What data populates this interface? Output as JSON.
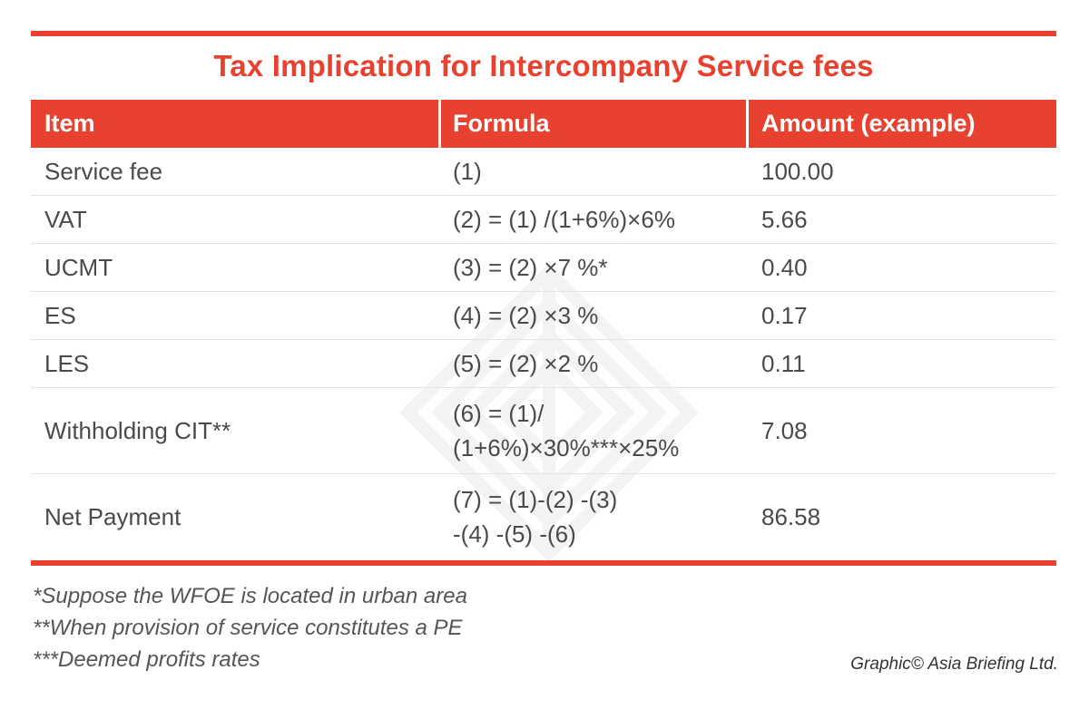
{
  "title": "Tax Implication for Intercompany Service fees",
  "colors": {
    "accent": "#e8412f",
    "text": "#4a4a4a",
    "row_separator": "#e3e3e3"
  },
  "table": {
    "headers": [
      "Item",
      "Formula",
      "Amount (example)"
    ],
    "rows": [
      {
        "item": "Service fee",
        "formula_lines": [
          "(1)"
        ],
        "amount": "100.00"
      },
      {
        "item": "VAT",
        "formula_lines": [
          "(2) = (1) /(1+6%)×6%"
        ],
        "amount": "5.66"
      },
      {
        "item": "UCMT",
        "formula_lines": [
          "(3) = (2) ×7 %*"
        ],
        "amount": "0.40"
      },
      {
        "item": "ES",
        "formula_lines": [
          "(4) = (2) ×3 %"
        ],
        "amount": "0.17"
      },
      {
        "item": "LES",
        "formula_lines": [
          "(5) = (2) ×2 %"
        ],
        "amount": "0.11"
      },
      {
        "item": "Withholding CIT**",
        "formula_lines": [
          "(6) = (1)/",
          "(1+6%)×30%***×25%"
        ],
        "amount": "7.08"
      },
      {
        "item": "Net Payment",
        "formula_lines": [
          "(7) = (1)-(2) -(3)",
          "-(4) -(5) -(6)"
        ],
        "amount": "86.58"
      }
    ]
  },
  "footnotes": [
    "*Suppose the WFOE is located in urban area",
    "**When provision of service constitutes a PE",
    "***Deemed profits rates"
  ],
  "credit": "Graphic© Asia Briefing Ltd.",
  "watermark_icon": "asia-briefing-logo-icon"
}
